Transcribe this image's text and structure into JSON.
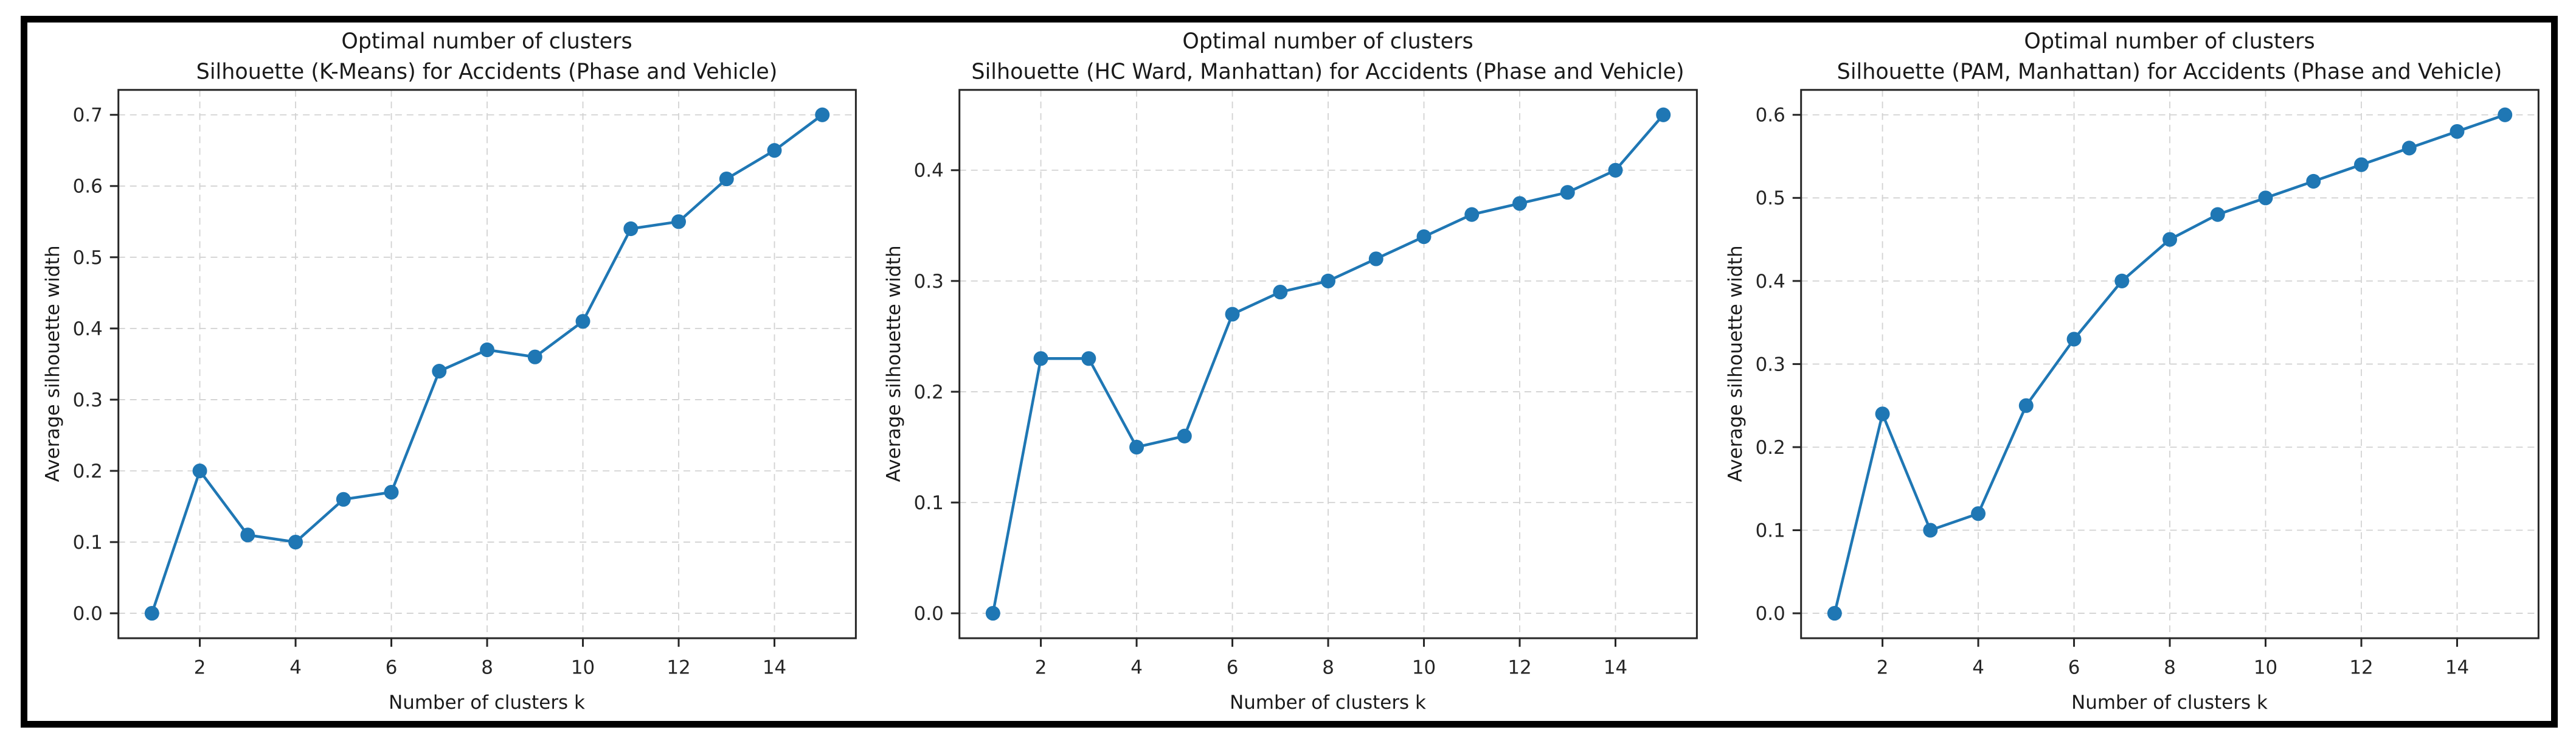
{
  "figure": {
    "background": "#ffffff",
    "frame_color": "#000000"
  },
  "chart_data": [
    {
      "type": "line",
      "title": "Optimal number of clusters",
      "subtitle": "Silhouette (K-Means) for Accidents (Phase and Vehicle)",
      "xlabel": "Number of clusters k",
      "ylabel": "Average silhouette width",
      "x": [
        1,
        2,
        3,
        4,
        5,
        6,
        7,
        8,
        9,
        10,
        11,
        12,
        13,
        14,
        15
      ],
      "values": [
        0.0,
        0.2,
        0.11,
        0.1,
        0.16,
        0.17,
        0.34,
        0.37,
        0.36,
        0.41,
        0.54,
        0.55,
        0.61,
        0.65,
        0.7
      ],
      "xticks": [
        2,
        4,
        6,
        8,
        10,
        12,
        14
      ],
      "yticks": [
        0.0,
        0.1,
        0.2,
        0.3,
        0.4,
        0.5,
        0.6,
        0.7
      ],
      "xlim": [
        0.3,
        15.7
      ],
      "ylim": [
        -0.035,
        0.735
      ],
      "grid": true,
      "line_color": "#1f77b4",
      "marker": "circle"
    },
    {
      "type": "line",
      "title": "Optimal number of clusters",
      "subtitle": "Silhouette (HC Ward, Manhattan) for Accidents (Phase and Vehicle)",
      "xlabel": "Number of clusters k",
      "ylabel": "Average silhouette width",
      "x": [
        1,
        2,
        3,
        4,
        5,
        6,
        7,
        8,
        9,
        10,
        11,
        12,
        13,
        14,
        15
      ],
      "values": [
        0.0,
        0.23,
        0.23,
        0.15,
        0.16,
        0.27,
        0.29,
        0.3,
        0.32,
        0.34,
        0.36,
        0.37,
        0.38,
        0.4,
        0.45
      ],
      "xticks": [
        2,
        4,
        6,
        8,
        10,
        12,
        14
      ],
      "yticks": [
        0.0,
        0.1,
        0.2,
        0.3,
        0.4
      ],
      "xlim": [
        0.3,
        15.7
      ],
      "ylim": [
        -0.0225,
        0.4725
      ],
      "grid": true,
      "line_color": "#1f77b4",
      "marker": "circle"
    },
    {
      "type": "line",
      "title": "Optimal number of clusters",
      "subtitle": "Silhouette (PAM, Manhattan) for Accidents (Phase and Vehicle)",
      "xlabel": "Number of clusters k",
      "ylabel": "Average silhouette width",
      "x": [
        1,
        2,
        3,
        4,
        5,
        6,
        7,
        8,
        9,
        10,
        11,
        12,
        13,
        14,
        15
      ],
      "values": [
        0.0,
        0.24,
        0.1,
        0.12,
        0.25,
        0.33,
        0.4,
        0.45,
        0.48,
        0.5,
        0.52,
        0.54,
        0.56,
        0.58,
        0.6
      ],
      "xticks": [
        2,
        4,
        6,
        8,
        10,
        12,
        14
      ],
      "yticks": [
        0.0,
        0.1,
        0.2,
        0.3,
        0.4,
        0.5,
        0.6
      ],
      "xlim": [
        0.3,
        15.7
      ],
      "ylim": [
        -0.03,
        0.63
      ],
      "grid": true,
      "line_color": "#1f77b4",
      "marker": "circle"
    }
  ]
}
